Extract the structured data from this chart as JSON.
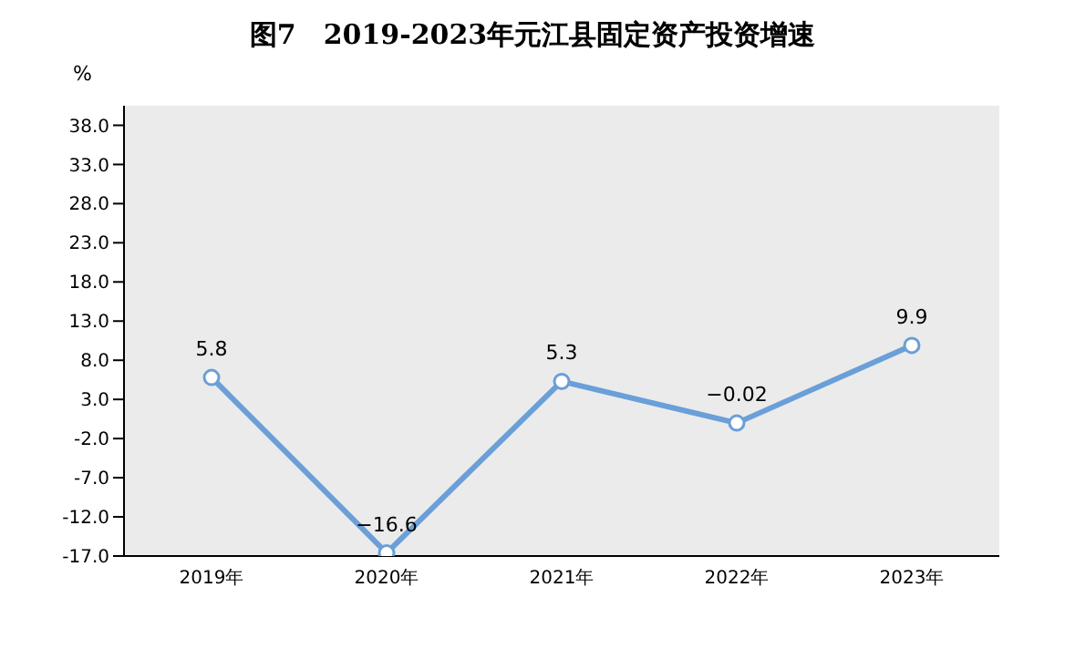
{
  "chart_data": {
    "type": "line",
    "title": "图7　2019-2023年元江县固定资产投资增速",
    "ylabel": "%",
    "categories": [
      "2019年",
      "2020年",
      "2021年",
      "2022年",
      "2023年"
    ],
    "series": [
      {
        "color": "#6a9fd8",
        "values": [
          5.8,
          -16.6,
          5.3,
          -0.02,
          9.9
        ]
      }
    ],
    "ylim": [
      -17,
      40.5
    ],
    "yticks": [
      {
        "value": -17,
        "label": "-17.0"
      },
      {
        "value": -12,
        "label": "-12.0"
      },
      {
        "value": -7,
        "label": "-7.0"
      },
      {
        "value": -2,
        "label": "-2.0"
      },
      {
        "value": 3,
        "label": "3.0"
      },
      {
        "value": 8,
        "label": "8.0"
      },
      {
        "value": 13,
        "label": "13.0"
      },
      {
        "value": 18,
        "label": "18.0"
      },
      {
        "value": 23,
        "label": "23.0"
      },
      {
        "value": 28,
        "label": "28.0"
      },
      {
        "value": 33,
        "label": "33.0"
      },
      {
        "value": 38,
        "label": "38.0"
      }
    ],
    "value_labels": [
      "5.8",
      "−16.6",
      "5.3",
      "−0.02",
      "9.9"
    ],
    "marker": "circle",
    "line_style": "solid",
    "grid": false
  }
}
